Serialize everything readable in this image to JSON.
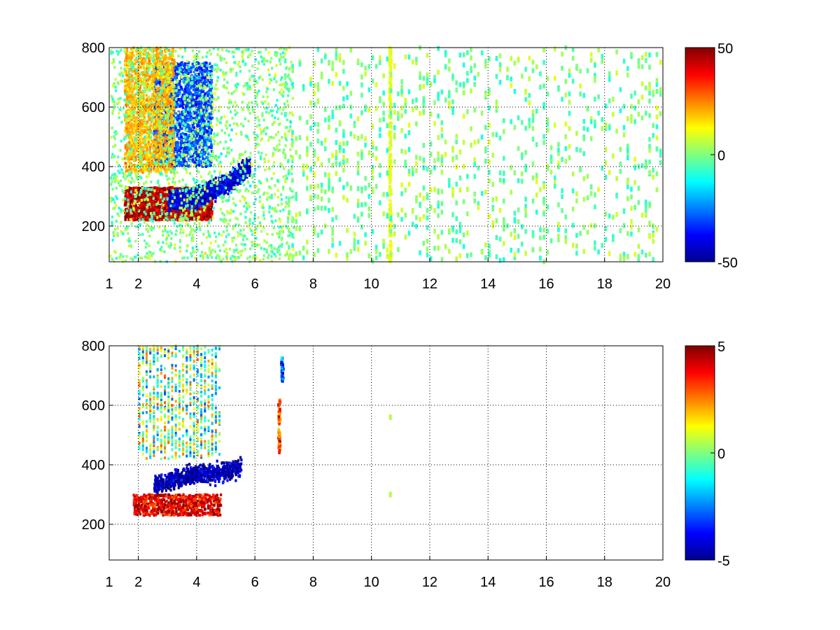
{
  "chart_data": [
    {
      "type": "heatmap",
      "title": "",
      "xlabel": "",
      "ylabel": "",
      "xlim": [
        1,
        20
      ],
      "ylim": [
        80,
        800
      ],
      "xticks": [
        1,
        2,
        4,
        6,
        8,
        10,
        12,
        14,
        16,
        18,
        20
      ],
      "yticks": [
        200,
        400,
        600,
        800
      ],
      "grid": true,
      "colormap": "jet",
      "colorbar": {
        "range": [
          -50,
          50
        ],
        "ticks": [
          50,
          0,
          -50
        ]
      },
      "features": [
        {
          "description": "positive band",
          "x_range": [
            1.5,
            4.5
          ],
          "y_range": [
            220,
            330
          ],
          "value": 45
        },
        {
          "description": "negative curved band",
          "points": [
            [
              3.0,
              280
            ],
            [
              4.0,
              300
            ],
            [
              5.0,
              340
            ],
            [
              5.8,
              400
            ]
          ],
          "value": -40
        },
        {
          "description": "negative region",
          "x_range": [
            2.5,
            4.5
          ],
          "y_range": [
            400,
            750
          ],
          "value": -30
        },
        {
          "description": "positive region",
          "x_range": [
            1.5,
            3.2
          ],
          "y_range": [
            380,
            800
          ],
          "value": 20
        },
        {
          "description": "vertical streak",
          "x": 10.6,
          "y_range": [
            80,
            800
          ],
          "value": 10
        },
        {
          "description": "sparse scatter",
          "x_range": [
            7,
            20
          ],
          "y_range": [
            80,
            800
          ],
          "value_range": [
            -10,
            10
          ]
        }
      ]
    },
    {
      "type": "heatmap",
      "title": "",
      "xlabel": "",
      "ylabel": "",
      "xlim": [
        1,
        20
      ],
      "ylim": [
        80,
        800
      ],
      "xticks": [
        1,
        2,
        4,
        6,
        8,
        10,
        12,
        14,
        16,
        18,
        20
      ],
      "yticks": [
        200,
        400,
        600,
        800
      ],
      "grid": true,
      "colormap": "jet",
      "colorbar": {
        "range": [
          -5,
          5
        ],
        "ticks": [
          5,
          0,
          -5
        ]
      },
      "features": [
        {
          "description": "positive band",
          "x_range": [
            1.8,
            4.8
          ],
          "y_range": [
            230,
            300
          ],
          "value": 4
        },
        {
          "description": "negative curved band",
          "points": [
            [
              2.5,
              330
            ],
            [
              3.5,
              360
            ],
            [
              4.5,
              370
            ],
            [
              5.5,
              390
            ]
          ],
          "value": -4.5
        },
        {
          "description": "mixed region",
          "x_range": [
            2.0,
            4.8
          ],
          "y_range": [
            420,
            800
          ],
          "value_range": [
            -3,
            3
          ]
        },
        {
          "description": "positive patch",
          "x": 6.8,
          "y_range": [
            440,
            620
          ],
          "value": 3
        },
        {
          "description": "negative patch",
          "x": 6.9,
          "y_range": [
            680,
            760
          ],
          "value": -3
        },
        {
          "description": "isolated cells",
          "points": [
            [
              10.6,
              560
            ],
            [
              10.6,
              300
            ]
          ],
          "value": 0.5
        }
      ]
    }
  ]
}
